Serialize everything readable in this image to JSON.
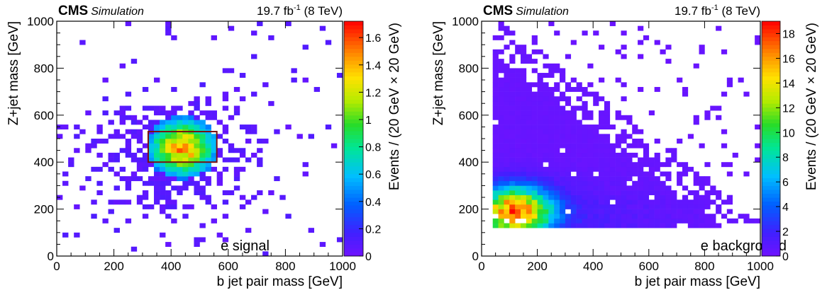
{
  "chart_data": [
    {
      "type": "heatmap",
      "header_left_bold": "CMS",
      "header_left_italic": "Simulation",
      "header_right": {
        "lumi": "19.7 fb",
        "sup": "-1",
        "energy": " (8 TeV)"
      },
      "xlabel": "b jet pair mass [GeV]",
      "ylabel": "Z+jet mass [GeV]",
      "zlabel": "Events / (20 GeV × 20 GeV)",
      "annotation": "e signal",
      "xlim": [
        0,
        1000
      ],
      "ylim": [
        0,
        1000
      ],
      "zlim": [
        0,
        1.72
      ],
      "x_ticks": [
        0,
        200,
        400,
        600,
        800,
        1000
      ],
      "y_ticks": [
        0,
        200,
        400,
        600,
        800,
        1000
      ],
      "z_ticks": [
        "0",
        "0.2",
        "0.4",
        "0.6",
        "0.8",
        "1",
        "1.2",
        "1.4",
        "1.6"
      ],
      "bin_width": 20,
      "cluster": {
        "x": 440,
        "y": 462,
        "sx": 75,
        "sy": 80,
        "peak": 1.65
      },
      "signal_box": {
        "x_range": [
          320,
          560
        ],
        "y_range": [
          400,
          530
        ],
        "color": "#7a1010"
      }
    },
    {
      "type": "heatmap",
      "header_left_bold": "CMS",
      "header_left_italic": "Simulation",
      "header_right": {
        "lumi": "19.7 fb",
        "sup": "-1",
        "energy": " (8 TeV)"
      },
      "xlabel": "b jet pair mass [GeV]",
      "ylabel": "Z+jet mass [GeV]",
      "zlabel": "Events / (20 GeV × 20 GeV)",
      "annotation": "e background",
      "xlim": [
        0,
        1000
      ],
      "ylim": [
        0,
        1000
      ],
      "zlim": [
        0,
        19
      ],
      "x_ticks": [
        0,
        200,
        400,
        600,
        800,
        1000
      ],
      "y_ticks": [
        0,
        200,
        400,
        600,
        800,
        1000
      ],
      "z_ticks": [
        "0",
        "2",
        "4",
        "6",
        "8",
        "10",
        "12",
        "14",
        "16",
        "18"
      ],
      "bin_width": 20,
      "cluster": {
        "x": 120,
        "y": 190,
        "sx": 90,
        "sy": 70,
        "peak": 18.5
      }
    }
  ]
}
